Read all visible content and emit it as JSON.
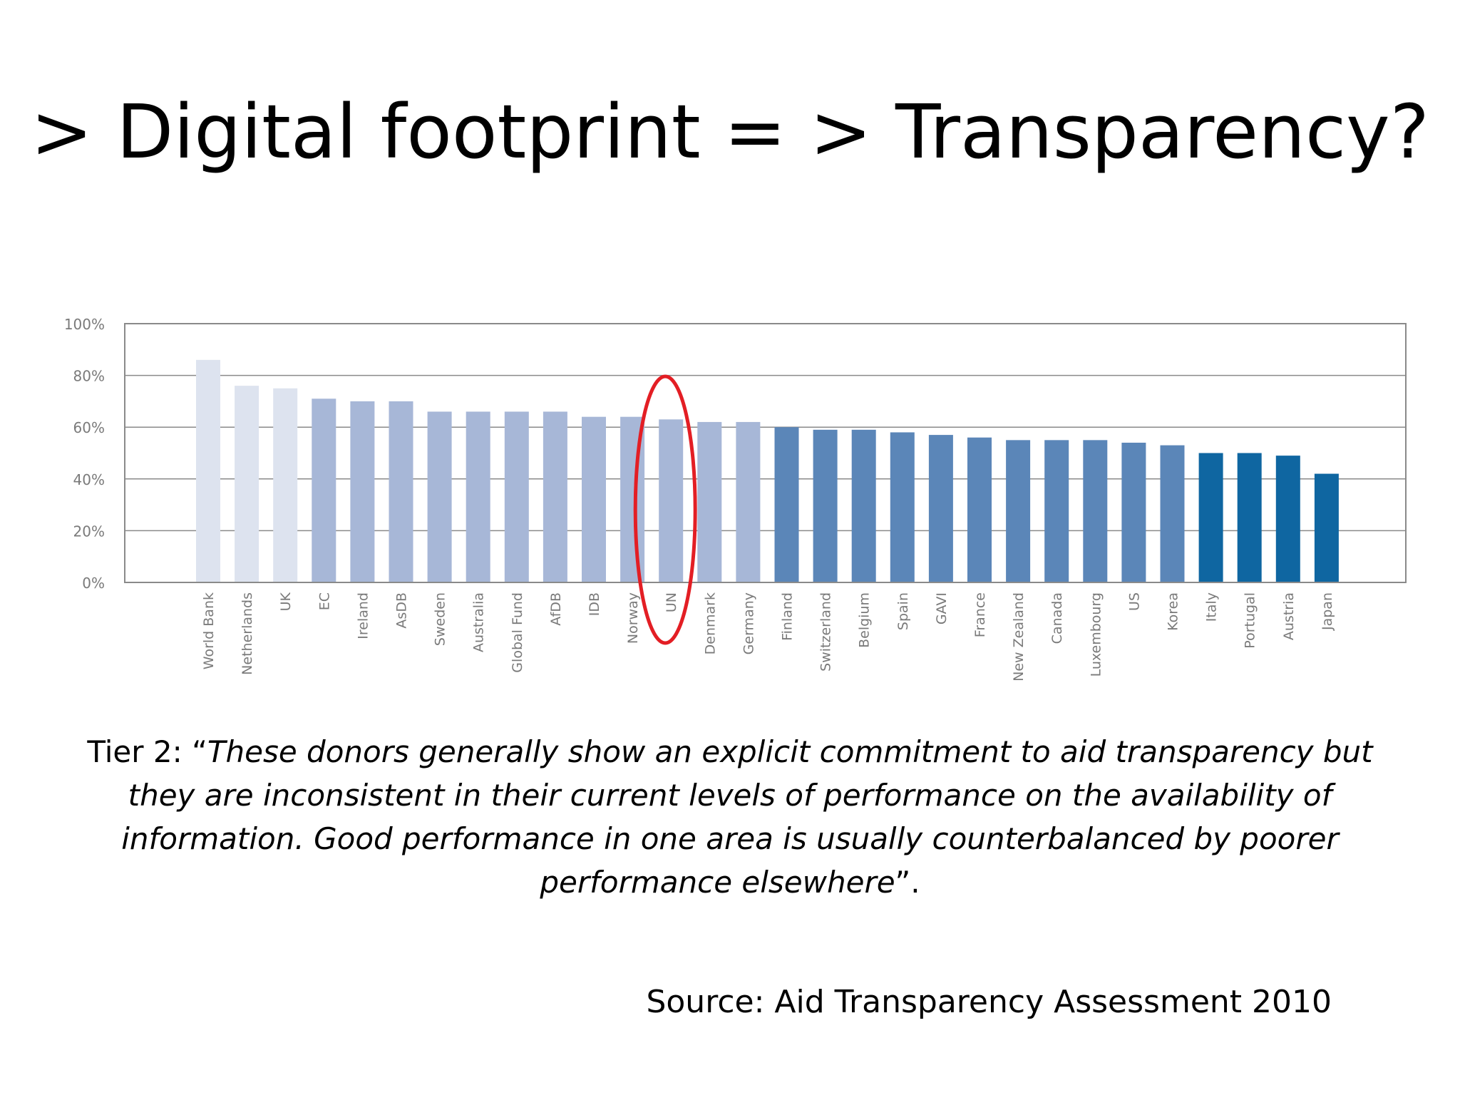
{
  "title": "> Digital footprint = > Transparency?",
  "quote": {
    "prefix": "Tier 2: “",
    "text": "These donors generally show an explicit commitment to aid transparency but they are inconsistent in their current levels of performance on the availability of information. Good performance in one area is usually counterbalanced by poorer performance elsewhere",
    "suffix": "”."
  },
  "source": "Source:  Aid Transparency Assessment 2010",
  "chart_data": {
    "type": "bar",
    "categories": [
      "World Bank",
      "Netherlands",
      "UK",
      "EC",
      "Ireland",
      "AsDB",
      "Sweden",
      "Australia",
      "Global Fund",
      "AfDB",
      "IDB",
      "Norway",
      "UN",
      "Denmark",
      "Germany",
      "Finland",
      "Switzerland",
      "Belgium",
      "Spain",
      "GAVI",
      "France",
      "New Zealand",
      "Canada",
      "Luxembourg",
      "US",
      "Korea",
      "Italy",
      "Portugal",
      "Austria",
      "Japan"
    ],
    "values": [
      86,
      76,
      75,
      71,
      70,
      70,
      66,
      66,
      66,
      66,
      64,
      64,
      63,
      62,
      62,
      60,
      59,
      59,
      58,
      57,
      56,
      55,
      55,
      55,
      54,
      53,
      50,
      50,
      49,
      42
    ],
    "tiers": [
      1,
      1,
      1,
      2,
      2,
      2,
      2,
      2,
      2,
      2,
      2,
      2,
      2,
      2,
      2,
      3,
      3,
      3,
      3,
      3,
      3,
      3,
      3,
      3,
      3,
      3,
      4,
      4,
      4,
      4
    ],
    "tier_colors": {
      "1": "#dde3ef",
      "2": "#a7b7d7",
      "3": "#5b86b8",
      "4": "#0f66a1"
    },
    "highlight": "UN",
    "highlight_color": "#e31e24",
    "y_ticks": [
      "0%",
      "20%",
      "40%",
      "60%",
      "80%",
      "100%"
    ],
    "ylim": [
      0,
      100
    ],
    "grid": true,
    "xlabel": "",
    "ylabel": ""
  }
}
